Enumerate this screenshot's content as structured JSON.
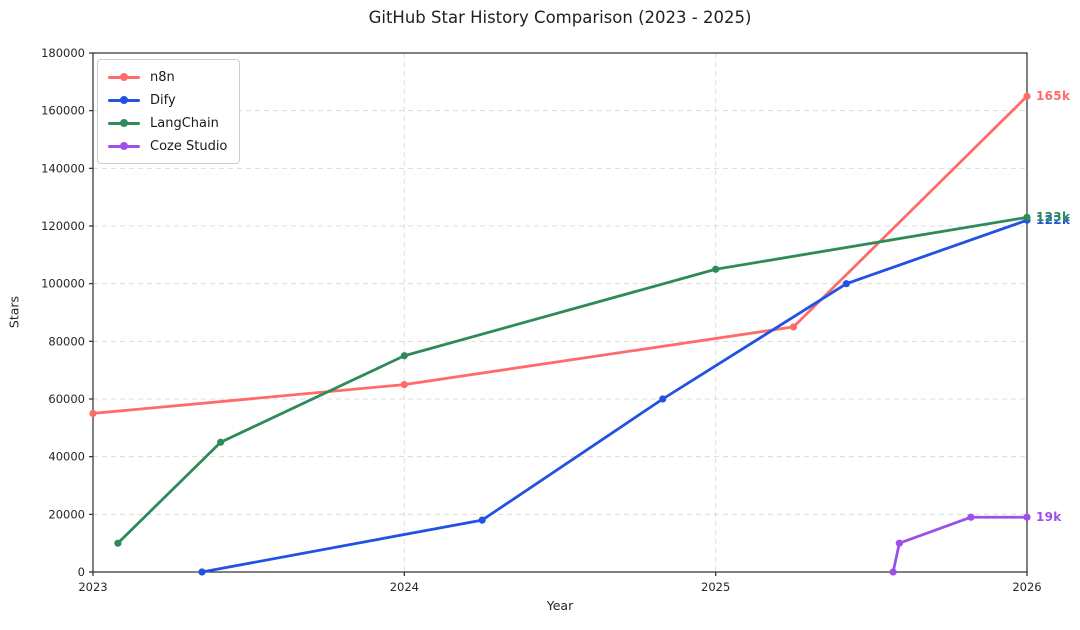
{
  "page": {
    "title": "GitHub Star History Comparison (2023 - 2025)"
  },
  "chart_data": {
    "type": "line",
    "title": "GitHub Star History Comparison (2023 - 2025)",
    "xlabel": "Year",
    "ylabel": "Stars",
    "xlim": [
      2023,
      2026
    ],
    "ylim": [
      0,
      180000
    ],
    "xticks": {
      "values": [
        2023,
        2024,
        2025,
        2026
      ],
      "labels": [
        "2023",
        "2024",
        "2025",
        "2026"
      ]
    },
    "yticks": {
      "values": [
        0,
        20000,
        40000,
        60000,
        80000,
        100000,
        120000,
        140000,
        160000,
        180000
      ],
      "labels": [
        "0",
        "20000",
        "40000",
        "60000",
        "80000",
        "100000",
        "120000",
        "140000",
        "160000",
        "180000"
      ]
    },
    "grid": true,
    "grid_style": "dashed",
    "legend_position": "top-left",
    "series": [
      {
        "name": "n8n",
        "color": "#FF6B6B",
        "points": [
          [
            2023.0,
            55000
          ],
          [
            2024.0,
            65000
          ],
          [
            2025.25,
            85000
          ],
          [
            2026.0,
            165000
          ]
        ],
        "end_label": "165k"
      },
      {
        "name": "Dify",
        "color": "#2152E3",
        "points": [
          [
            2023.35,
            0
          ],
          [
            2024.25,
            18000
          ],
          [
            2024.83,
            60000
          ],
          [
            2025.42,
            100000
          ],
          [
            2026.0,
            122000
          ]
        ],
        "end_label": "122k"
      },
      {
        "name": "LangChain",
        "color": "#2E8B57",
        "points": [
          [
            2023.08,
            10000
          ],
          [
            2023.41,
            45000
          ],
          [
            2024.0,
            75000
          ],
          [
            2025.0,
            105000
          ],
          [
            2026.0,
            123000
          ]
        ],
        "end_label": "123k"
      },
      {
        "name": "Coze Studio",
        "color": "#9D50E8",
        "points": [
          [
            2025.57,
            0
          ],
          [
            2025.59,
            10000
          ],
          [
            2025.82,
            19000
          ],
          [
            2026.0,
            19000
          ]
        ],
        "end_label": "19k"
      }
    ],
    "colors": {
      "grid": "#dcdcdc",
      "spine": "#2b2b2b",
      "tick_text": "#262626",
      "title_text": "#1f1f1f",
      "background": "#ffffff"
    }
  }
}
